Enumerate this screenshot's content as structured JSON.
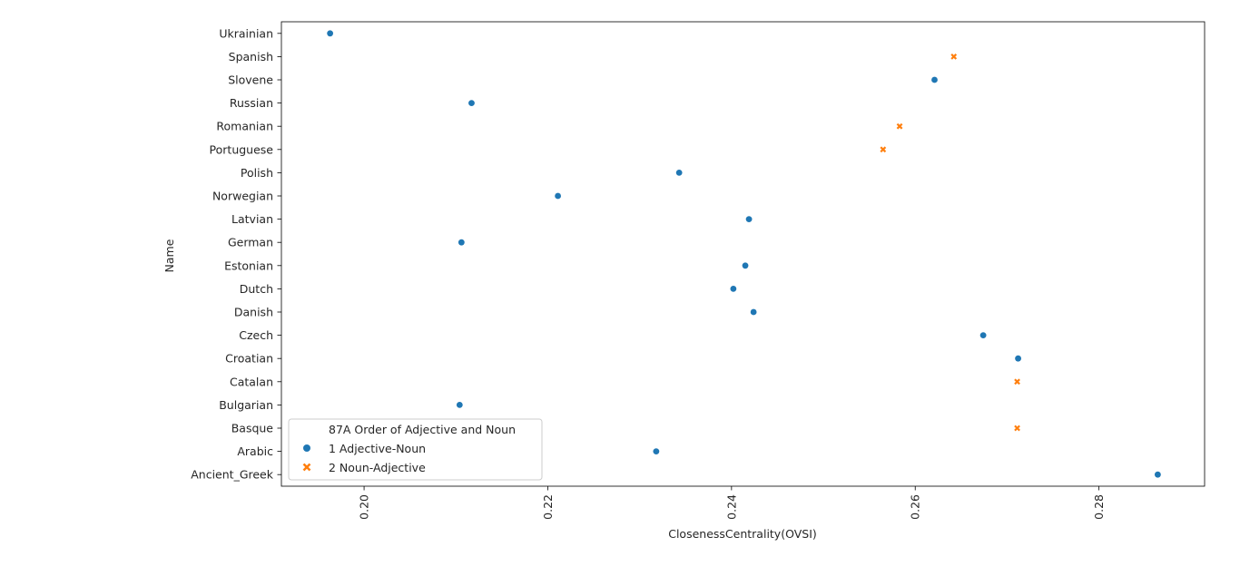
{
  "chart_data": {
    "type": "scatter",
    "title": "",
    "xlabel": "ClosenessCentrality(OVSI)",
    "ylabel": "Name",
    "xlim": [
      0.191,
      0.2915
    ],
    "xticks": [
      "0.20",
      "0.22",
      "0.24",
      "0.26",
      "0.28"
    ],
    "xtick_values": [
      0.2,
      0.22,
      0.24,
      0.26,
      0.28
    ],
    "categories": [
      "Ukrainian",
      "Spanish",
      "Slovene",
      "Russian",
      "Romanian",
      "Portuguese",
      "Polish",
      "Norwegian",
      "Latvian",
      "German",
      "Estonian",
      "Dutch",
      "Danish",
      "Czech",
      "Croatian",
      "Catalan",
      "Bulgarian",
      "Basque",
      "Arabic",
      "Ancient_Greek"
    ],
    "grid": false,
    "legend": {
      "title": "87A Order of Adjective and Noun",
      "placement": "lower-left"
    },
    "series": [
      {
        "name": "1 Adjective-Noun",
        "marker": "circle",
        "color": "#1f77b4",
        "points": [
          {
            "y": "Ukrainian",
            "x": 0.1963
          },
          {
            "y": "Slovene",
            "x": 0.2621
          },
          {
            "y": "Russian",
            "x": 0.2117
          },
          {
            "y": "Polish",
            "x": 0.2343
          },
          {
            "y": "Norwegian",
            "x": 0.2211
          },
          {
            "y": "Latvian",
            "x": 0.2419
          },
          {
            "y": "German",
            "x": 0.2106
          },
          {
            "y": "Estonian",
            "x": 0.2415
          },
          {
            "y": "Dutch",
            "x": 0.2402
          },
          {
            "y": "Danish",
            "x": 0.2424
          },
          {
            "y": "Czech",
            "x": 0.2674
          },
          {
            "y": "Croatian",
            "x": 0.2712
          },
          {
            "y": "Bulgarian",
            "x": 0.2104
          },
          {
            "y": "Arabic",
            "x": 0.2318
          },
          {
            "y": "Ancient_Greek",
            "x": 0.2864
          }
        ]
      },
      {
        "name": "2 Noun-Adjective",
        "marker": "x",
        "color": "#ff7f0e",
        "points": [
          {
            "y": "Spanish",
            "x": 0.2642
          },
          {
            "y": "Romanian",
            "x": 0.2583
          },
          {
            "y": "Portuguese",
            "x": 0.2565
          },
          {
            "y": "Catalan",
            "x": 0.2711
          },
          {
            "y": "Basque",
            "x": 0.2711
          }
        ]
      }
    ]
  }
}
